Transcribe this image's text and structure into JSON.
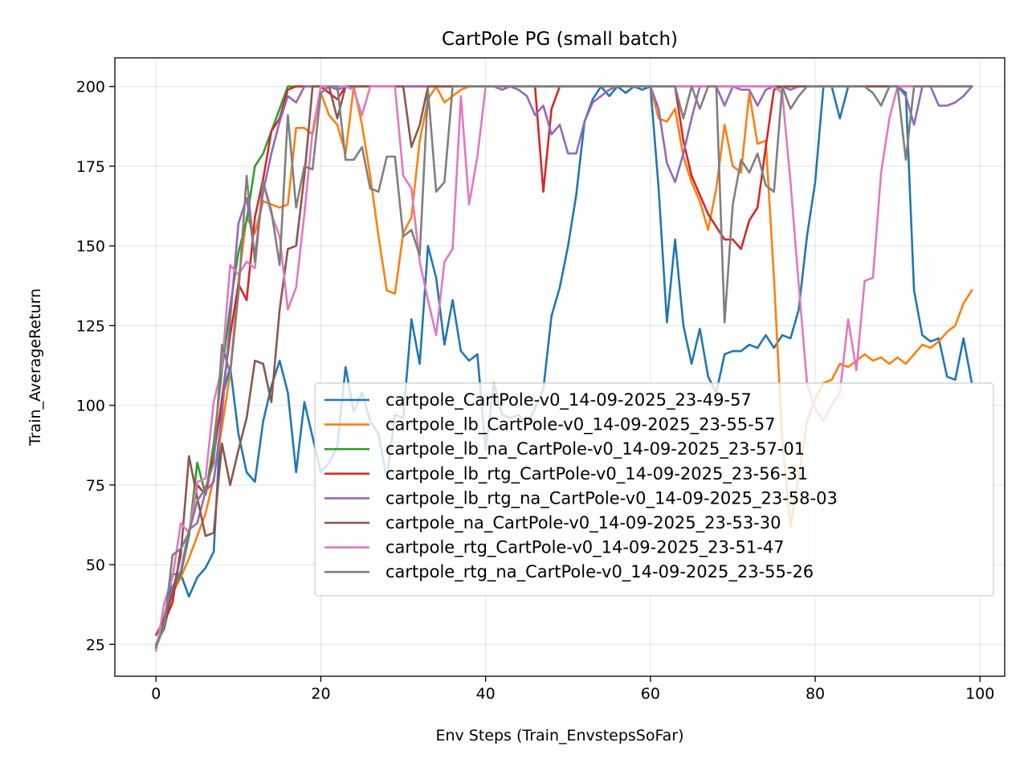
{
  "chart_data": {
    "type": "line",
    "title": "CartPole PG (small batch)",
    "xlabel": "Env Steps (Train_EnvstepsSoFar)",
    "ylabel": "Train_AverageReturn",
    "xlim": [
      -5,
      103
    ],
    "ylim": [
      15,
      209
    ],
    "xticks": [
      0,
      20,
      40,
      60,
      80,
      100
    ],
    "yticks": [
      25,
      50,
      75,
      100,
      125,
      150,
      175,
      200
    ],
    "grid": true,
    "legend_position": "lower-right",
    "series": [
      {
        "name": "cartpole_CartPole-v0_14-09-2025_23-49-57",
        "color": "#1f77b4",
        "values": [
          24,
          32,
          47,
          47,
          40,
          46,
          49,
          54,
          102,
          112,
          91,
          79,
          76,
          95,
          106,
          114,
          104,
          79,
          101,
          90,
          79,
          82,
          87,
          112,
          98,
          104,
          95,
          91,
          77,
          97,
          96,
          127,
          113,
          150,
          140,
          119,
          133,
          117,
          114,
          116,
          86,
          107,
          97,
          96,
          97,
          94,
          99,
          105,
          128,
          137,
          150,
          166,
          189,
          196,
          200,
          197,
          200,
          198,
          200,
          199,
          200,
          168,
          126,
          152,
          125,
          113,
          124,
          109,
          104,
          116,
          117,
          117,
          119,
          118,
          122,
          118,
          122,
          121,
          130,
          153,
          170,
          200,
          200,
          190,
          200,
          200,
          200,
          200,
          200,
          200,
          200,
          198,
          136,
          122,
          120,
          121,
          109,
          108,
          121,
          107
        ]
      },
      {
        "name": "cartpole_lb_CartPole-v0_14-09-2025_23-55-57",
        "color": "#ff7f0e",
        "values": [
          25,
          31,
          41,
          46,
          52,
          59,
          66,
          77,
          93,
          110,
          139,
          159,
          154,
          164,
          163,
          162,
          163,
          187,
          187,
          185,
          198,
          191,
          188,
          179,
          200,
          188,
          172,
          153,
          136,
          135,
          154,
          159,
          183,
          196,
          200,
          195,
          197,
          199,
          200,
          200,
          200,
          200,
          200,
          200,
          200,
          200,
          200,
          200,
          200,
          200,
          200,
          200,
          200,
          200,
          200,
          200,
          200,
          200,
          200,
          200,
          200,
          190,
          189,
          193,
          178,
          170,
          164,
          155,
          168,
          188,
          175,
          173,
          198,
          182,
          183,
          140,
          89,
          62,
          78,
          95,
          102,
          107,
          108,
          113,
          112,
          114,
          116,
          114,
          115,
          113,
          115,
          113,
          116,
          119,
          118,
          120,
          123,
          125,
          132,
          136
        ]
      },
      {
        "name": "cartpole_lb_na_CartPole-v0_14-09-2025_23-57-01",
        "color": "#2ca02c",
        "values": [
          25,
          30,
          42,
          47,
          59,
          82,
          72,
          88,
          111,
          131,
          148,
          158,
          175,
          179,
          186,
          193,
          200,
          200,
          200,
          200,
          200,
          200,
          200,
          200,
          200,
          200,
          200,
          200,
          200,
          200,
          200,
          200,
          200,
          200,
          200,
          200,
          200,
          200,
          200,
          200,
          200,
          200,
          200,
          200,
          200,
          200,
          200,
          200,
          200,
          200,
          200,
          200,
          200,
          200,
          200,
          200,
          200,
          200,
          200,
          200,
          200,
          200,
          200,
          200,
          200,
          200,
          200,
          200,
          200,
          200,
          200,
          200,
          200,
          200,
          200,
          200,
          200,
          200,
          200,
          200,
          200,
          200,
          200,
          200,
          200,
          200,
          200,
          200,
          200,
          200,
          200,
          200,
          200,
          200,
          200,
          200,
          200,
          200,
          200,
          200
        ]
      },
      {
        "name": "cartpole_lb_rtg_CartPole-v0_14-09-2025_23-56-31",
        "color": "#d62728",
        "values": [
          24,
          32,
          38,
          55,
          60,
          75,
          72,
          84,
          102,
          122,
          138,
          133,
          159,
          171,
          186,
          190,
          199,
          200,
          200,
          200,
          200,
          198,
          196,
          200,
          200,
          200,
          200,
          200,
          200,
          200,
          200,
          200,
          200,
          200,
          200,
          200,
          200,
          200,
          200,
          200,
          200,
          200,
          200,
          200,
          200,
          200,
          200,
          167,
          193,
          200,
          200,
          200,
          200,
          200,
          200,
          200,
          200,
          200,
          200,
          200,
          200,
          200,
          200,
          200,
          183,
          172,
          166,
          160,
          156,
          152,
          152,
          149,
          158,
          162,
          181,
          199,
          200,
          200,
          200,
          200,
          200,
          200,
          200,
          200,
          200,
          200,
          200,
          200,
          200,
          200,
          200,
          200,
          200,
          200,
          200,
          200,
          200,
          200,
          200,
          200
        ]
      },
      {
        "name": "cartpole_lb_rtg_na_CartPole-v0_14-09-2025_23-58-03",
        "color": "#9467bd",
        "values": [
          24,
          34,
          43,
          48,
          61,
          63,
          73,
          76,
          97,
          127,
          157,
          165,
          147,
          167,
          179,
          189,
          197,
          195,
          200,
          200,
          200,
          200,
          199,
          200,
          200,
          200,
          200,
          200,
          200,
          200,
          200,
          200,
          200,
          200,
          200,
          200,
          200,
          200,
          200,
          200,
          200,
          200,
          199,
          200,
          199,
          197,
          191,
          194,
          185,
          188,
          179,
          179,
          189,
          195,
          197,
          199,
          200,
          200,
          200,
          200,
          200,
          193,
          176,
          170,
          179,
          190,
          200,
          200,
          200,
          194,
          200,
          199,
          199,
          194,
          199,
          200,
          200,
          199,
          200,
          200,
          200,
          200,
          200,
          200,
          200,
          200,
          200,
          200,
          200,
          200,
          200,
          197,
          188,
          200,
          200,
          194,
          194,
          195,
          197,
          200
        ]
      },
      {
        "name": "cartpole_na_CartPole-v0_14-09-2025_23-53-30",
        "color": "#8c564b",
        "values": [
          28,
          33,
          41,
          53,
          84,
          71,
          59,
          60,
          88,
          75,
          86,
          96,
          114,
          113,
          101,
          130,
          149,
          150,
          172,
          200,
          200,
          200,
          190,
          200,
          200,
          200,
          200,
          200,
          200,
          200,
          200,
          181,
          188,
          200,
          200,
          200,
          200,
          200,
          200,
          200,
          200,
          200,
          200,
          200,
          200,
          200,
          200,
          200,
          200,
          200,
          200,
          200,
          200,
          200,
          200,
          200,
          200,
          200,
          200,
          200,
          200,
          200,
          200,
          200,
          200,
          200,
          200,
          200,
          200,
          200,
          200,
          200,
          200,
          200,
          200,
          200,
          200,
          200,
          200,
          200,
          200,
          200,
          200,
          200,
          200,
          200,
          200,
          200,
          200,
          200,
          200,
          200,
          200,
          200,
          200,
          200,
          200,
          200,
          200,
          200
        ]
      },
      {
        "name": "cartpole_rtg_CartPole-v0_14-09-2025_23-51-47",
        "color": "#e377c2",
        "values": [
          23,
          38,
          46,
          63,
          60,
          76,
          77,
          101,
          112,
          144,
          141,
          145,
          143,
          170,
          160,
          153,
          130,
          137,
          160,
          186,
          200,
          200,
          200,
          200,
          199,
          191,
          200,
          200,
          200,
          200,
          172,
          168,
          145,
          133,
          122,
          145,
          149,
          197,
          163,
          178,
          200,
          200,
          200,
          200,
          200,
          200,
          200,
          200,
          200,
          200,
          200,
          200,
          200,
          200,
          200,
          200,
          200,
          200,
          200,
          200,
          200,
          200,
          200,
          200,
          200,
          200,
          200,
          200,
          200,
          200,
          200,
          200,
          200,
          200,
          200,
          200,
          198,
          170,
          138,
          107,
          99,
          95,
          100,
          104,
          127,
          111,
          139,
          140,
          173,
          190,
          200,
          200,
          200,
          200,
          200,
          200,
          200,
          200,
          200,
          200
        ]
      },
      {
        "name": "cartpole_rtg_na_CartPole-v0_14-09-2025_23-55-26",
        "color": "#7f7f7f",
        "values": [
          24,
          31,
          53,
          55,
          60,
          70,
          74,
          82,
          119,
          110,
          135,
          172,
          145,
          170,
          161,
          144,
          191,
          162,
          175,
          174,
          198,
          200,
          200,
          177,
          177,
          181,
          168,
          167,
          178,
          178,
          153,
          155,
          147,
          199,
          167,
          170,
          200,
          200,
          200,
          200,
          200,
          200,
          200,
          200,
          200,
          200,
          200,
          200,
          200,
          200,
          200,
          200,
          200,
          200,
          200,
          200,
          200,
          200,
          200,
          200,
          200,
          200,
          200,
          200,
          190,
          200,
          193,
          200,
          200,
          126,
          163,
          177,
          173,
          179,
          169,
          167,
          200,
          193,
          197,
          200,
          200,
          200,
          200,
          200,
          200,
          200,
          200,
          198,
          194,
          200,
          200,
          177,
          200,
          200,
          200,
          200,
          200,
          200,
          200,
          200
        ]
      }
    ]
  }
}
